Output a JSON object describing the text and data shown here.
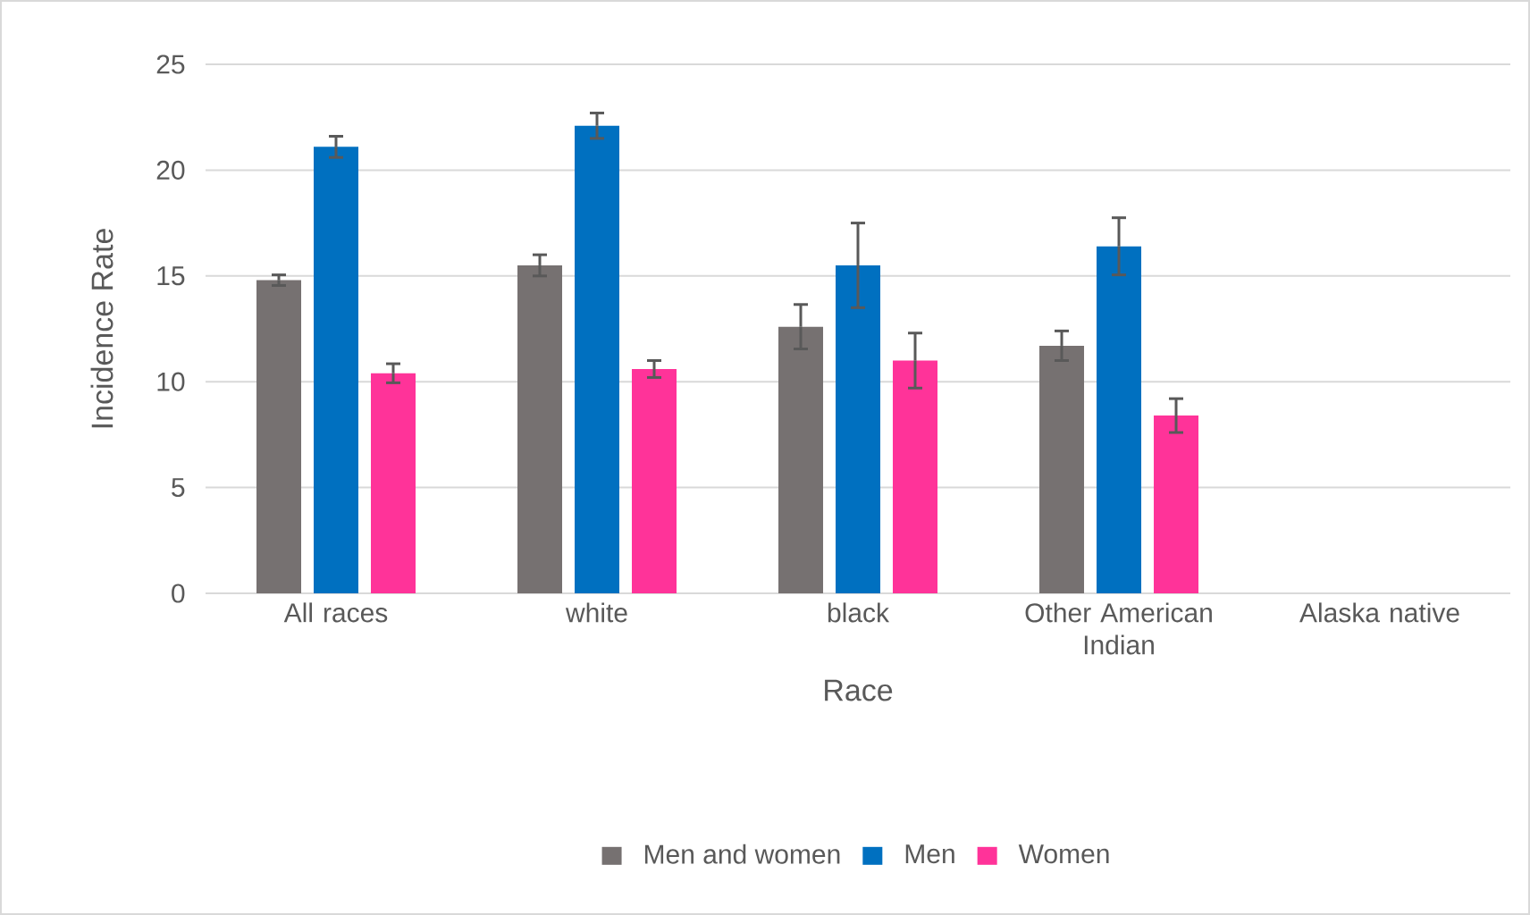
{
  "chart_data": {
    "type": "bar",
    "xlabel": "Race",
    "ylabel": "Incidence Rate",
    "categories": [
      "All races",
      "white",
      "black",
      "Other American Indian",
      "Alaska native"
    ],
    "series": [
      {
        "name": "Men and women",
        "color": "#767171",
        "values": [
          14.8,
          15.5,
          12.6,
          11.7,
          null
        ],
        "errors": [
          0.25,
          0.5,
          1.05,
          0.7,
          null
        ]
      },
      {
        "name": "Men",
        "color": "#0070c0",
        "values": [
          21.1,
          22.1,
          15.5,
          16.4,
          null
        ],
        "errors": [
          0.5,
          0.6,
          2.0,
          1.35,
          null
        ]
      },
      {
        "name": "Women",
        "color": "#ff3399",
        "values": [
          10.4,
          10.6,
          11.0,
          8.4,
          null
        ],
        "errors": [
          0.45,
          0.4,
          1.3,
          0.8,
          null
        ]
      }
    ],
    "ylim": [
      0,
      25
    ],
    "yticks": [
      0,
      5,
      10,
      15,
      20,
      25
    ],
    "grid": "y",
    "legend": "bottom"
  }
}
